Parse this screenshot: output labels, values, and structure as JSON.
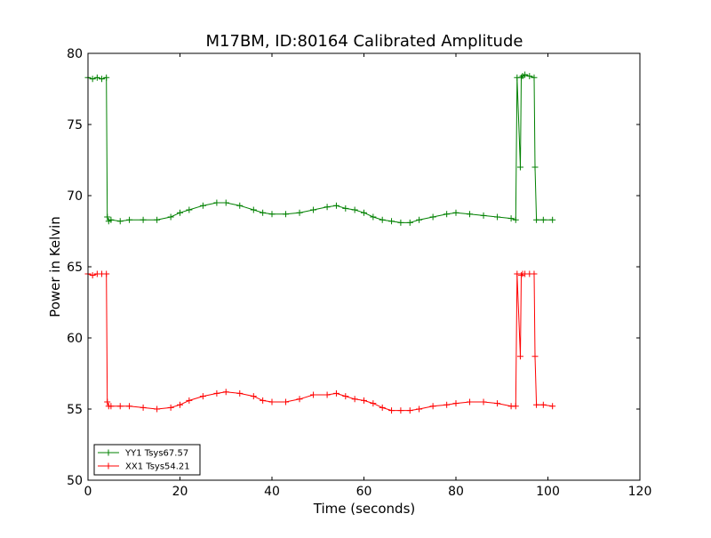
{
  "chart_data": {
    "type": "line",
    "title": "M17BM, ID:80164 Calibrated Amplitude",
    "xlabel": "Time (seconds)",
    "ylabel": "Power in Kelvin",
    "xlim": [
      0,
      120
    ],
    "ylim": [
      50,
      80
    ],
    "xticks": [
      0,
      20,
      40,
      60,
      80,
      100,
      120
    ],
    "yticks": [
      50,
      55,
      60,
      65,
      70,
      75,
      80
    ],
    "grid": false,
    "legend_position": "lower-left",
    "marker": "+",
    "series": [
      {
        "name": "YY1 Tsys67.57",
        "color": "#008000",
        "x": [
          0,
          1,
          2,
          3,
          4,
          4.2,
          4.5,
          5,
          7,
          9,
          12,
          15,
          18,
          20,
          22,
          25,
          28,
          30,
          33,
          36,
          38,
          40,
          43,
          46,
          49,
          52,
          54,
          56,
          58,
          60,
          62,
          64,
          66,
          68,
          70,
          72,
          75,
          78,
          80,
          83,
          86,
          89,
          92,
          93,
          93.3,
          94,
          94.2,
          94.5,
          95,
          96,
          97,
          97.2,
          97.5,
          99,
          101
        ],
        "y": [
          78.3,
          78.2,
          78.3,
          78.2,
          78.3,
          68.5,
          68.2,
          68.3,
          68.2,
          68.3,
          68.3,
          68.3,
          68.5,
          68.8,
          69.0,
          69.3,
          69.5,
          69.5,
          69.3,
          69.0,
          68.8,
          68.7,
          68.7,
          68.8,
          69.0,
          69.2,
          69.3,
          69.1,
          69.0,
          68.8,
          68.5,
          68.3,
          68.2,
          68.1,
          68.1,
          68.3,
          68.5,
          68.7,
          68.8,
          68.7,
          68.6,
          68.5,
          68.4,
          68.3,
          78.3,
          72.0,
          78.3,
          78.4,
          78.5,
          78.4,
          78.3,
          72.0,
          68.3,
          68.3,
          68.3
        ]
      },
      {
        "name": "XX1 Tsys54.21",
        "color": "#ff0000",
        "x": [
          0,
          1,
          2,
          3,
          4,
          4.2,
          4.5,
          5,
          7,
          9,
          12,
          15,
          18,
          20,
          22,
          25,
          28,
          30,
          33,
          36,
          38,
          40,
          43,
          46,
          49,
          52,
          54,
          56,
          58,
          60,
          62,
          64,
          66,
          68,
          70,
          72,
          75,
          78,
          80,
          83,
          86,
          89,
          92,
          93,
          93.3,
          94,
          94.2,
          94.5,
          95,
          96,
          97,
          97.2,
          97.5,
          99,
          101
        ],
        "y": [
          64.5,
          64.4,
          64.5,
          64.5,
          64.5,
          55.5,
          55.2,
          55.2,
          55.2,
          55.2,
          55.1,
          55.0,
          55.1,
          55.3,
          55.6,
          55.9,
          56.1,
          56.2,
          56.1,
          55.9,
          55.6,
          55.5,
          55.5,
          55.7,
          56.0,
          56.0,
          56.1,
          55.9,
          55.7,
          55.6,
          55.4,
          55.1,
          54.9,
          54.9,
          54.9,
          55.0,
          55.2,
          55.3,
          55.4,
          55.5,
          55.5,
          55.4,
          55.2,
          55.2,
          64.5,
          58.7,
          64.4,
          64.5,
          64.5,
          64.5,
          64.5,
          58.7,
          55.3,
          55.3,
          55.2
        ]
      }
    ]
  }
}
